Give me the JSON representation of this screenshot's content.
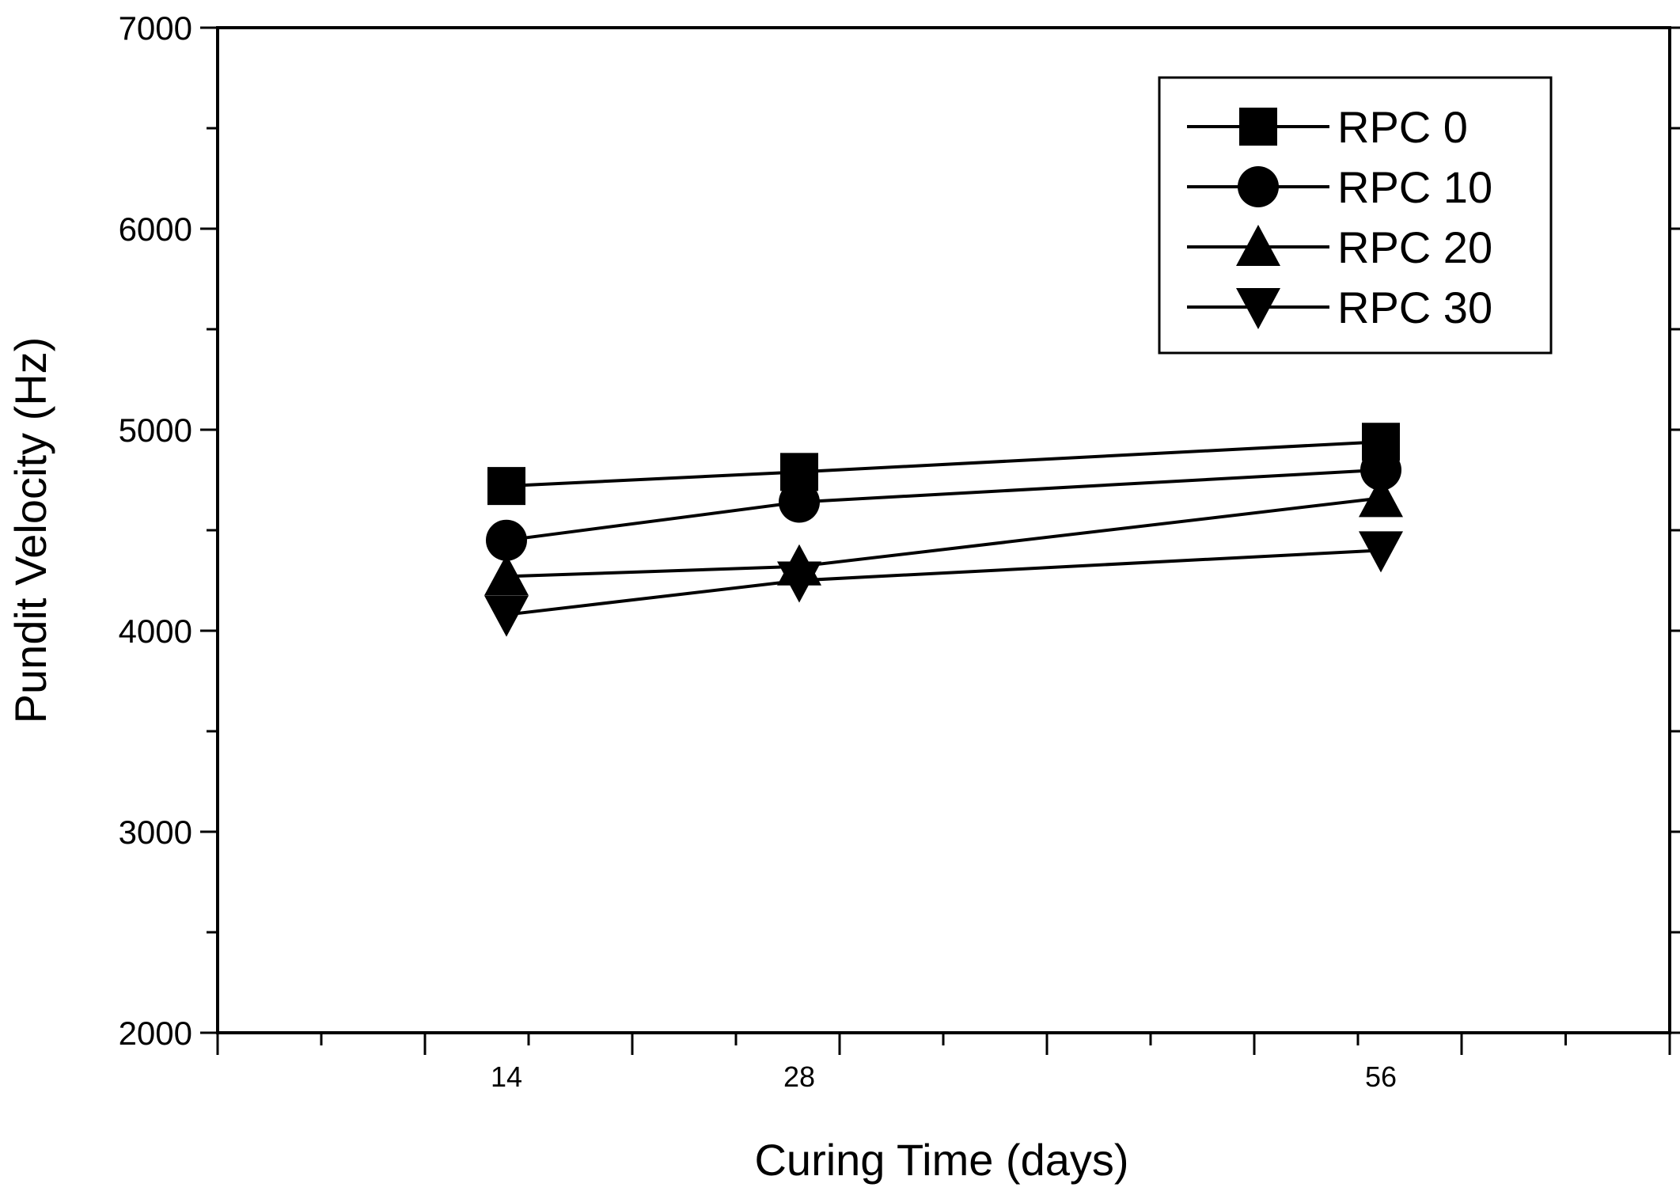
{
  "chart_data": {
    "type": "line",
    "title": "",
    "xlabel": "Curing Time (days)",
    "ylabel": "Pundit Velocity (Hz)",
    "categories": [
      "14",
      "28",
      "56"
    ],
    "ylim": [
      2000,
      7000
    ],
    "yticks": [
      "2000",
      "3000",
      "4000",
      "5000",
      "6000",
      "7000"
    ],
    "legend_position": "top-right",
    "series": [
      {
        "name": "RPC 0",
        "marker": "square",
        "values": [
          4720,
          4790,
          4940
        ]
      },
      {
        "name": "RPC 10",
        "marker": "circle",
        "values": [
          4450,
          4640,
          4800
        ]
      },
      {
        "name": "RPC 20",
        "marker": "triangle-up",
        "values": [
          4270,
          4320,
          4660
        ]
      },
      {
        "name": "RPC 30",
        "marker": "triangle-down",
        "values": [
          4080,
          4250,
          4400
        ]
      }
    ],
    "line_color": "#000000"
  }
}
